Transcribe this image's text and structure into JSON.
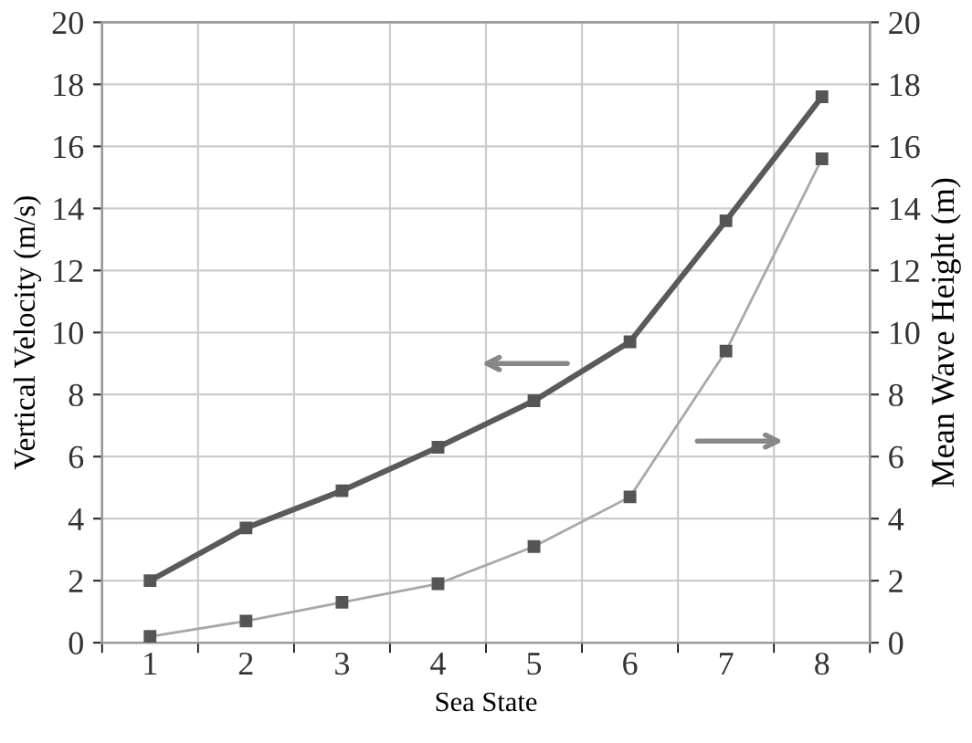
{
  "chart_data": {
    "type": "line",
    "xlabel": "Sea State",
    "ylabel": "Vertical Velocity (m/s)",
    "y2label": "Mean Wave Height (m)",
    "categories": [
      "1",
      "2",
      "3",
      "4",
      "5",
      "6",
      "7",
      "8"
    ],
    "series": [
      {
        "color": "#5a5a5a",
        "values": [
          2.0,
          3.7,
          4.9,
          6.3,
          7.8,
          9.7,
          13.6,
          17.6
        ]
      },
      {
        "color": "#a8a8a8",
        "axis": "y2",
        "values": [
          0.2,
          0.7,
          1.3,
          1.9,
          3.1,
          4.7,
          9.4,
          15.6
        ]
      }
    ],
    "ylim": [
      0,
      20
    ],
    "yticks": [
      0,
      2,
      4,
      6,
      8,
      10,
      12,
      14,
      16,
      18,
      20
    ],
    "y2lim": [
      0,
      20
    ],
    "y2ticks": [
      0,
      2,
      4,
      6,
      8,
      10,
      12,
      14,
      16,
      18,
      20
    ],
    "grid": true,
    "marker": "square",
    "line_style": "solid"
  }
}
